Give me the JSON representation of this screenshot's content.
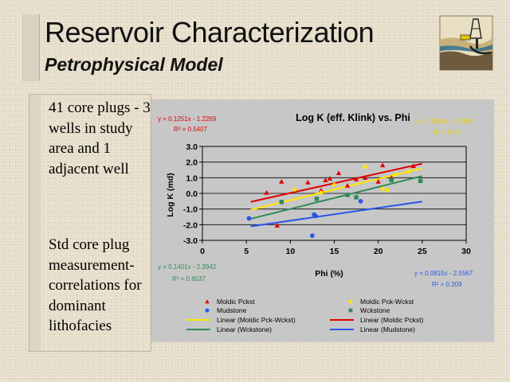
{
  "slide": {
    "title": "Reservoir Characterization",
    "subtitle": "Petrophysical Model",
    "body_items": [
      "41 core plugs - 3 wells in study area and 1 adjacent well",
      "Std core plug measurement-correlations for dominant lithofacies"
    ]
  },
  "chart_data": {
    "type": "scatter",
    "title": "Log K (eff. Klink) vs. Phi",
    "xlabel": "Phi (%)",
    "ylabel": "Log K (md)",
    "xlim": [
      0,
      30
    ],
    "ylim": [
      -3.0,
      3.0
    ],
    "x_ticks": [
      "0",
      "5",
      "10",
      "15",
      "20",
      "25",
      "30"
    ],
    "y_ticks": [
      "-3.0",
      "-2.0",
      "-1.0",
      "0.0",
      "1.0",
      "2.0",
      "3.0"
    ],
    "grid": "horizontal",
    "legend_position": "bottom",
    "series": [
      {
        "name": "Moldic Pckst",
        "color": "#e00000",
        "marker": "triangle",
        "points": [
          [
            7.3,
            0.05
          ],
          [
            8.5,
            -2.05
          ],
          [
            9.0,
            0.75
          ],
          [
            12.0,
            0.7
          ],
          [
            13.5,
            0.2
          ],
          [
            14.0,
            0.85
          ],
          [
            14.5,
            0.95
          ],
          [
            15.5,
            1.3
          ],
          [
            16.5,
            0.5
          ],
          [
            17.5,
            0.9
          ],
          [
            18.5,
            1.0
          ],
          [
            20.0,
            0.75
          ],
          [
            20.5,
            1.8
          ],
          [
            21.5,
            1.0
          ],
          [
            24.0,
            1.75
          ]
        ]
      },
      {
        "name": "Moldic Pck-Wckst",
        "color": "#ffe600",
        "marker": "diamond",
        "points": [
          [
            10.5,
            0.25
          ],
          [
            13.5,
            0.05
          ],
          [
            15.0,
            0.55
          ],
          [
            18.5,
            1.7
          ],
          [
            20.5,
            0.3
          ],
          [
            21.0,
            0.2
          ],
          [
            22.0,
            1.2
          ],
          [
            23.5,
            1.4
          ]
        ]
      },
      {
        "name": "Mudstone",
        "color": "#2a55e8",
        "marker": "circle",
        "points": [
          [
            5.3,
            -1.6
          ],
          [
            12.5,
            -2.7
          ],
          [
            12.7,
            -1.35
          ],
          [
            12.9,
            -1.45
          ],
          [
            18.0,
            -0.5
          ]
        ]
      },
      {
        "name": "Wckstone",
        "color": "#2e8b57",
        "marker": "square",
        "points": [
          [
            9.0,
            -0.55
          ],
          [
            13.0,
            -0.35
          ],
          [
            16.5,
            -0.1
          ],
          [
            17.5,
            -0.25
          ],
          [
            21.5,
            0.85
          ],
          [
            24.8,
            0.8
          ]
        ]
      }
    ],
    "trendlines": [
      {
        "name": "Linear (Moldic Pck-Wckst)",
        "color": "#ffe600",
        "slope": 0.1361,
        "intercept": -1.7989,
        "x_range": [
          5.5,
          25
        ],
        "equation": "y = 0.1361x - 1.7989",
        "r2": "R² = 0.43"
      },
      {
        "name": "Linear (Moldic Pckst)",
        "color": "#e00000",
        "slope": 0.1251,
        "intercept": -1.2269,
        "x_range": [
          5.5,
          25
        ],
        "equation": "y = 0.1251x - 1.2269",
        "r2": "R² = 0.5407"
      },
      {
        "name": "Linear (Wckstone)",
        "color": "#2e8b57",
        "slope": 0.1401,
        "intercept": -2.3942,
        "x_range": [
          5.5,
          25
        ],
        "equation": "y = 0.1401x - 2.3942",
        "r2": "R² = 0.6537"
      },
      {
        "name": "Linear (Mudstone)",
        "color": "#2a55e8",
        "slope": 0.0815,
        "intercept": -2.5567,
        "x_range": [
          5.5,
          25
        ],
        "equation": "y = 0.0815x - 2.5567",
        "r2": "R² = 0.209"
      }
    ],
    "legend": [
      "Moldic Pckst",
      "Moldic Pck-Wckst",
      "Mudstone",
      "Wckstone",
      "Linear (Moldic Pck-Wckst)",
      "Linear (Moldic Pckst)",
      "Linear (Wckstone)",
      "Linear (Mudstone)"
    ]
  }
}
